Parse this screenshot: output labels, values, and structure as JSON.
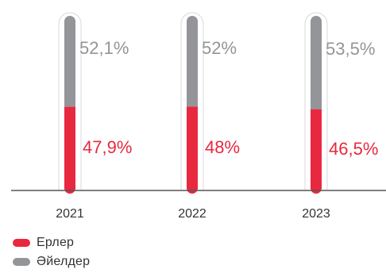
{
  "chart_data": {
    "type": "bar",
    "stacked": true,
    "percent": true,
    "categories": [
      "2021",
      "2022",
      "2023"
    ],
    "series": [
      {
        "name": "Ерлер",
        "values": [
          47.9,
          48,
          46.5
        ],
        "labels": [
          "47,9%",
          "48%",
          "46,5%"
        ],
        "color": "#E8283F"
      },
      {
        "name": "Әйелдер",
        "values": [
          52.1,
          52,
          53.5
        ],
        "labels": [
          "52,1%",
          "52%",
          "53,5%"
        ],
        "color": "#939598"
      }
    ],
    "ylim": [
      0,
      100
    ],
    "grid": false,
    "legend": "bottom-left"
  }
}
